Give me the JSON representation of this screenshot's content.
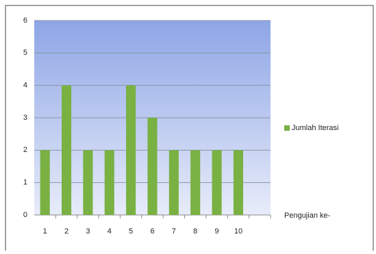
{
  "chart_data": {
    "type": "bar",
    "categories": [
      "1",
      "2",
      "3",
      "4",
      "5",
      "6",
      "7",
      "8",
      "9",
      "10",
      null
    ],
    "series": [
      {
        "name": "Jumlah Iterasi",
        "color": "#79b143",
        "values": [
          2,
          4,
          2,
          2,
          4,
          3,
          2,
          2,
          2,
          2,
          null
        ]
      }
    ],
    "xlabel": "Pengujian ke-",
    "ylim": [
      0,
      6
    ],
    "yticks": [
      0,
      1,
      2,
      3,
      4,
      5,
      6
    ],
    "grid": true,
    "legend": "right"
  }
}
